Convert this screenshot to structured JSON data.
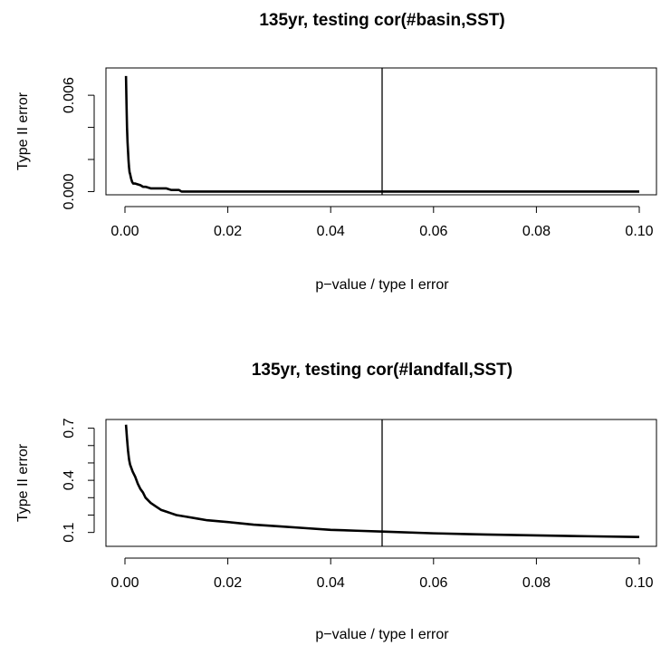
{
  "chart_data": [
    {
      "type": "line",
      "title": "135yr, testing cor(#basin,SST)",
      "xlabel": "p−value / type I error",
      "ylabel": "Type II error",
      "xlim": [
        0,
        0.1
      ],
      "ylim": [
        -0.0002,
        0.0077
      ],
      "x_ticks": [
        0.0,
        0.02,
        0.04,
        0.06,
        0.08,
        0.1
      ],
      "x_tick_labels": [
        "0.00",
        "0.02",
        "0.04",
        "0.06",
        "0.08",
        "0.10"
      ],
      "y_ticks": [
        0.0,
        0.002,
        0.004,
        0.006
      ],
      "y_tick_labels": [
        "0.000",
        "",
        "",
        "0.006"
      ],
      "vline": 0.05,
      "series": [
        {
          "x": [
            0.0002,
            0.0003,
            0.0004,
            0.0005,
            0.0006,
            0.0007,
            0.0008,
            0.0009,
            0.001,
            0.0012,
            0.0014,
            0.0016,
            0.0018,
            0.002,
            0.003,
            0.0035,
            0.004,
            0.005,
            0.006,
            0.007,
            0.008,
            0.009,
            0.0095,
            0.0105,
            0.011,
            0.02,
            0.05,
            0.1
          ],
          "y": [
            0.0072,
            0.0055,
            0.004,
            0.0031,
            0.0025,
            0.0019,
            0.0015,
            0.0012,
            0.0011,
            0.0008,
            0.0006,
            0.0005,
            0.0005,
            0.0005,
            0.0004,
            0.0003,
            0.0003,
            0.0002,
            0.0002,
            0.0002,
            0.0002,
            0.0001,
            0.0001,
            0.0001,
            0.0,
            0.0,
            0.0,
            0.0
          ]
        }
      ]
    },
    {
      "type": "line",
      "title": "135yr, testing cor(#landfall,SST)",
      "xlabel": "p−value / type I error",
      "ylabel": "Type II error",
      "xlim": [
        0,
        0.1
      ],
      "ylim": [
        0.02,
        0.75
      ],
      "x_ticks": [
        0.0,
        0.02,
        0.04,
        0.06,
        0.08,
        0.1
      ],
      "x_tick_labels": [
        "0.00",
        "0.02",
        "0.04",
        "0.06",
        "0.08",
        "0.10"
      ],
      "y_ticks": [
        0.1,
        0.2,
        0.3,
        0.4,
        0.5,
        0.6,
        0.7
      ],
      "y_tick_labels": [
        "0.1",
        "",
        "",
        "0.4",
        "",
        "",
        "0.7"
      ],
      "vline": 0.05,
      "series": [
        {
          "x": [
            0.0002,
            0.0004,
            0.0006,
            0.0008,
            0.001,
            0.0015,
            0.002,
            0.0025,
            0.003,
            0.0035,
            0.004,
            0.005,
            0.006,
            0.007,
            0.008,
            0.009,
            0.01,
            0.012,
            0.014,
            0.016,
            0.018,
            0.02,
            0.025,
            0.03,
            0.035,
            0.04,
            0.045,
            0.05,
            0.06,
            0.07,
            0.08,
            0.09,
            0.1
          ],
          "y": [
            0.72,
            0.64,
            0.57,
            0.52,
            0.49,
            0.45,
            0.42,
            0.38,
            0.35,
            0.33,
            0.3,
            0.27,
            0.25,
            0.23,
            0.22,
            0.21,
            0.2,
            0.19,
            0.18,
            0.17,
            0.165,
            0.16,
            0.145,
            0.135,
            0.125,
            0.115,
            0.11,
            0.105,
            0.095,
            0.088,
            0.083,
            0.078,
            0.074
          ]
        }
      ]
    }
  ]
}
